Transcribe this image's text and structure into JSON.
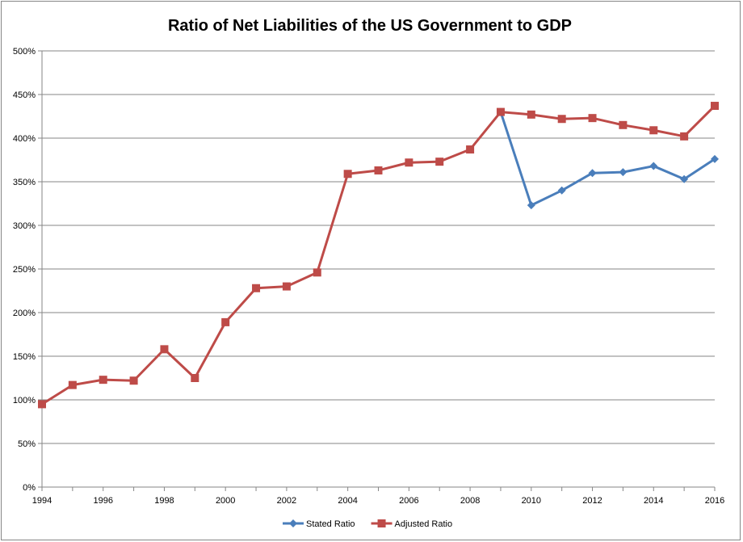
{
  "chart_data": {
    "type": "line",
    "title": "Ratio of Net Liabilities of the US Government to GDP",
    "xlabel": "",
    "ylabel": "",
    "x": [
      1994,
      1995,
      1996,
      1997,
      1998,
      1999,
      2000,
      2001,
      2002,
      2003,
      2004,
      2005,
      2006,
      2007,
      2008,
      2009,
      2010,
      2011,
      2012,
      2013,
      2014,
      2015,
      2016
    ],
    "x_tick_labels": [
      "1994",
      "1996",
      "1998",
      "2000",
      "2002",
      "2004",
      "2006",
      "2008",
      "2010",
      "2012",
      "2014",
      "2016"
    ],
    "y_tick_labels": [
      "0%",
      "50%",
      "100%",
      "150%",
      "200%",
      "250%",
      "300%",
      "350%",
      "400%",
      "450%",
      "500%"
    ],
    "xlim": [
      1994,
      2016
    ],
    "ylim": [
      0,
      500
    ],
    "grid": true,
    "legend_position": "bottom",
    "series": [
      {
        "name": "Stated Ratio",
        "color": "#4a7ebb",
        "marker": "diamond",
        "values": [
          null,
          null,
          null,
          null,
          null,
          null,
          null,
          null,
          null,
          null,
          null,
          null,
          null,
          null,
          null,
          430,
          323,
          340,
          360,
          361,
          368,
          353,
          376
        ]
      },
      {
        "name": "Adjusted Ratio",
        "color": "#be4b48",
        "marker": "square",
        "values": [
          95,
          117,
          123,
          122,
          158,
          125,
          189,
          228,
          230,
          246,
          359,
          363,
          372,
          373,
          387,
          430,
          427,
          422,
          423,
          415,
          409,
          402,
          437
        ]
      }
    ]
  }
}
